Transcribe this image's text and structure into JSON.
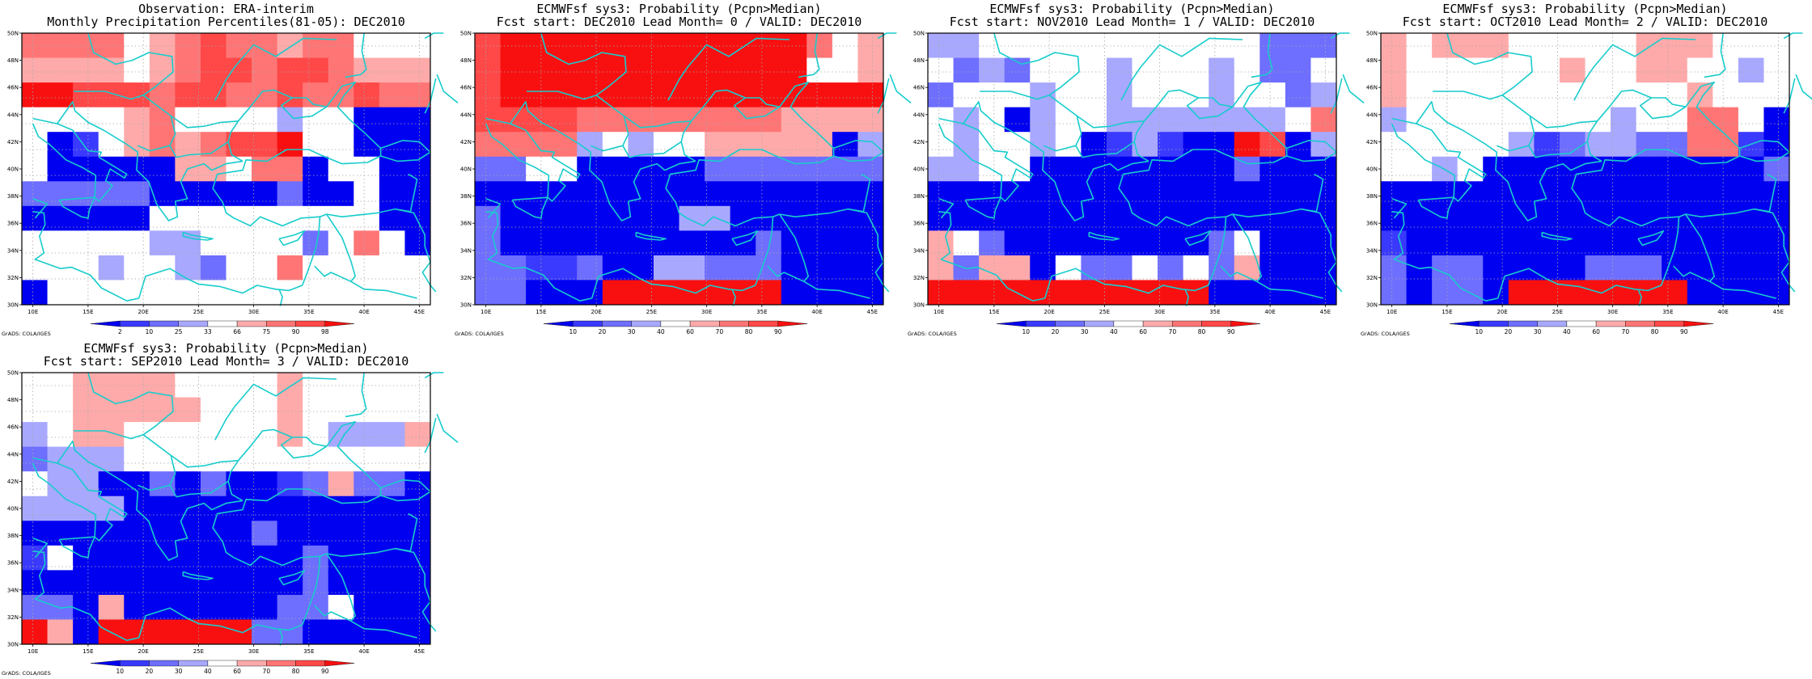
{
  "colors": {
    "b1": "#0000f0",
    "b2": "#3a3aff",
    "b3": "#6e6eff",
    "b4": "#a8a8ff",
    "w": "#ffffff",
    "r4": "#ffaaaa",
    "r3": "#ff7575",
    "r2": "#ff4848",
    "r1": "#f81010",
    "coast": "#18cccc"
  },
  "credit": "GrADS: COLA/IGES",
  "lon_labels": [
    "10E",
    "15E",
    "20E",
    "25E",
    "30E",
    "35E",
    "40E",
    "45E"
  ],
  "lat_labels": [
    "50N",
    "48N",
    "46N",
    "44N",
    "42N",
    "40N",
    "38N",
    "36N",
    "34N",
    "32N",
    "30N"
  ],
  "panels": [
    {
      "title_1": "Observation: ERA-interim",
      "title_2": "Monthly Precipitation Percentiles(81-05): DEC2010",
      "colorbar_labels": [
        "2",
        "10",
        "25",
        "33",
        "66",
        "75",
        "90",
        "98"
      ],
      "grid": [
        "r3 r3 r3 r3 w r4 r3 r2 r3 r3 r4 r3 r3 w w w",
        "r4 r4 r4 r4 w r4 r3 r2 r2 r3 r2 r2 r3 r4 r4 r4",
        "r1 r1 r2 r2 r2 r3 r2 r2 r3 r3 r2 r3 r3 r2 r3 r3",
        "w w w w r4 r3 w w w w b4 w w b1 b1 b1",
        "w b1 b2 w r4 r3 r4 r3 r2 r2 r1 w w b1 b1 b1",
        "w b1 b1 b1 b1 b1 r4 r4 w r3 r3 b1 w w b1 b1",
        "b3 b3 b3 b3 b3 b1 b1 b1 b1 b1 b3 b1 b1 w b1 b1",
        "b1 b1 b1 b1 b1 w w w w w w w w w b1 b1",
        "w w w w w b4 b4 w w w w b3 w r3 w b1",
        "w w w b4 w w b4 b3 w w r3 w w w w w",
        "b1 w w w w w w w w w w w w w w w"
      ]
    },
    {
      "title_1": "ECMWFsf sys3: Probability (Pcpn>Median)",
      "title_2": "Fcst start: DEC2010  Lead Month= 0 / VALID: DEC2010",
      "colorbar_labels": [
        "10",
        "20",
        "30",
        "40",
        "60",
        "70",
        "80",
        "90"
      ],
      "grid": [
        "r2 r1 r1 r1 r1 r1 r1 r1 r1 r1 r1 r1 r1 r3 w r4",
        "r2 r1 r1 r1 r1 r1 r1 r1 r1 r1 r1 r1 r1 w w r4",
        "r2 r1 r1 r1 r1 r1 r1 r1 r1 r1 r1 r1 r1 r1 r1 r1",
        "r2 r2 r2 r2 r3 r3 r3 r3 r3 r3 r3 r3 r4 r4 r4 r4",
        "r3 r3 r3 r3 b4 w b4 w w r4 r4 r4 r4 r4 b1 b4",
        "b3 b3 w w b1 b1 b1 b1 b1 b3 b3 b3 b3 b3 b3 b3",
        "b1 b1 b1 b1 b1 b1 b1 b1 b1 b1 b1 b1 b1 b1 b1 b1",
        "b3 b1 b1 b1 b1 b1 b1 b1 b4 b4 b1 b1 b1 b1 b1 b1",
        "b3 b1 b1 b1 b1 b1 b1 b1 b1 b1 b1 b3 b1 b1 b1 b1",
        "b3 b3 b2 b2 b3 b1 b1 b4 b4 b3 b3 b3 b1 b1 b1 b1",
        "b3 b3 b1 b1 b1 r1 r1 r1 r1 r1 r1 r1 b1 b1 b1 b1"
      ]
    },
    {
      "title_1": "ECMWFsf sys3: Probability (Pcpn>Median)",
      "title_2": "Fcst start: NOV2010  Lead Month= 1 / VALID: DEC2010",
      "colorbar_labels": [
        "10",
        "20",
        "30",
        "40",
        "60",
        "70",
        "80",
        "90"
      ],
      "grid": [
        "b4 b4 w w w w w w w w w w w b3 b3 b3",
        "w b3 b4 b3 w w w b4 w w w b4 w b3 b3 w",
        "b3 w w w b4 w w b4 w w w b4 w w b3 b4",
        "w b4 w b1 b4 w w b4 b4 b4 b4 b4 b4 b4 w r3",
        "w b4 w w b4 w b1 b2 b4 b2 b1 b1 r1 r2 b1 b4",
        "b4 b4 w w b1 b1 b1 b1 b1 b1 b1 b1 b3 b1 b1 b1",
        "b1 b1 b1 b1 b1 b1 b1 b1 b1 b1 b1 b1 b1 b1 b1 b1",
        "b1 b1 b1 b1 b1 b1 b1 b1 b1 b1 b1 b1 b1 b1 b1 b1",
        "r4 w b3 b1 b1 b1 b1 b1 b1 b1 b1 b3 w b1 b1 b1",
        "r4 b3 r4 r4 b1 w b3 b3 w b3 w b3 r4 b1 b1 b1",
        "r1 r1 r1 r1 r1 r1 r1 r1 r1 r1 r1 b1 b1 b1 b1 b1"
      ]
    },
    {
      "title_1": "ECMWFsf sys3: Probability (Pcpn>Median)",
      "title_2": "Fcst start: OCT2010  Lead Month= 2 / VALID: DEC2010",
      "colorbar_labels": [
        "10",
        "20",
        "30",
        "40",
        "60",
        "70",
        "80",
        "90"
      ],
      "grid": [
        "r4 w r4 r4 r4 w w w w w r4 r4 r4 w w w",
        "r4 w w w w w w r4 w w r4 r4 w w b4 w",
        "r4 w w w w w w w w w w w r4 w w w",
        "b4 w w w w w w w w b4 w w r3 r3 w b1",
        "w w w w w b4 b2 b3 b4 b4 b3 b3 r3 r3 b2 b1",
        "w w b4 w b1 b1 b1 b1 b1 b1 b1 b1 b1 b1 b1 b3",
        "b1 b1 b1 b1 b1 b1 b1 b1 b1 b1 b1 b1 b1 b1 b1 b1",
        "b1 b1 b1 b1 b1 b1 b1 b1 b1 b1 b1 b1 b1 b1 b1 b1",
        "b2 b1 b1 b1 b1 b1 b1 b1 b1 b1 b1 b1 b1 b1 b1 b1",
        "b3 b1 b3 b3 b1 b1 b1 b1 b3 b3 b3 b1 b1 b1 b1 b1",
        "b3 b1 b3 b3 b1 r1 r1 r1 r1 r1 r1 r1 b1 b1 b1 b1"
      ]
    },
    {
      "title_1": "ECMWFsf sys3: Probability (Pcpn>Median)",
      "title_2": "Fcst start: SEP2010  Lead Month= 3 / VALID: DEC2010",
      "colorbar_labels": [
        "10",
        "20",
        "30",
        "40",
        "60",
        "70",
        "80",
        "90"
      ],
      "grid": [
        "w w r4 r4 r4 r4 w w w w r4 w w w w w",
        "w w r4 r4 r4 r4 r4 w w w r4 w w w w w",
        "b4 w r4 r4 w w w w w w r4 w b4 b4 b4 r4",
        "b3 b4 b4 b4 w w w w w w w w w w w w",
        "w b4 b4 b1 b1 b3 b1 b3 b1 b1 b2 b3 r4 b3 b3 b1",
        "b4 b4 b4 b4 b1 b1 b1 b1 b1 b1 b1 b1 b1 b1 b1 b1",
        "b1 b1 b1 b1 b1 b1 b1 b1 b1 b3 b1 b1 b1 b1 b1 b1",
        "b2 w b1 b1 b1 b1 b1 b1 b1 b1 b1 b3 b1 b1 b1 b1",
        "b1 b1 b1 b1 b1 b1 b1 b1 b1 b1 b1 b3 b1 b1 b1 b1",
        "b3 b3 b1 r4 b1 b1 b1 b1 b1 b1 b3 b3 w b1 b1 b1",
        "r1 r4 b1 r1 r1 r1 r1 r1 r1 b3 b3 b1 b1 b1 b1 b1"
      ]
    }
  ]
}
